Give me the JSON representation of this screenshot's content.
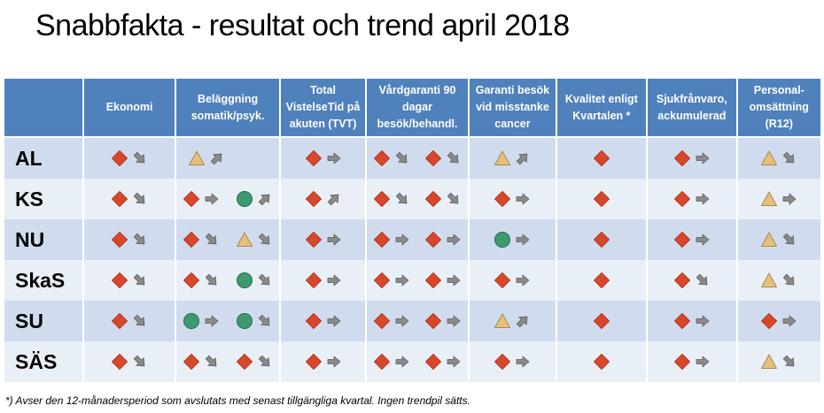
{
  "title": "Snabbfakta - resultat och trend april 2018",
  "columns": [
    "Ekonomi",
    "Beläggning somatik/psyk.",
    "Total VistelseTid på akuten (TVT)",
    "Vårdgaranti 90 dagar besök/behandl.",
    "Garanti besök vid misstanke cancer",
    "Kvalitet enligt Kvartalen *",
    "Sjukfrånvaro, ackumulerad",
    "Personal-omsättning (R12)"
  ],
  "colors": {
    "red": "#d9472b",
    "yellow": "#e6c07b",
    "green": "#3c9a6e",
    "header": "#4f81bd"
  },
  "rows": [
    {
      "label": "AL",
      "cells": [
        [
          [
            "red",
            "down-right"
          ]
        ],
        [
          [
            "yellow",
            "up-right"
          ],
          [
            "none",
            "none"
          ]
        ],
        [
          [
            "red",
            "right"
          ]
        ],
        [
          [
            "red",
            "down-right"
          ],
          [
            "red",
            "down-right"
          ]
        ],
        [
          [
            "yellow",
            "up-right"
          ]
        ],
        [
          [
            "red",
            "none"
          ]
        ],
        [
          [
            "red",
            "right"
          ]
        ],
        [
          [
            "yellow",
            "down-right"
          ]
        ]
      ]
    },
    {
      "label": "KS",
      "cells": [
        [
          [
            "red",
            "down-right"
          ]
        ],
        [
          [
            "red",
            "right"
          ],
          [
            "green",
            "up-right"
          ]
        ],
        [
          [
            "red",
            "up-right"
          ]
        ],
        [
          [
            "red",
            "down-right"
          ],
          [
            "red",
            "down-right"
          ]
        ],
        [
          [
            "red",
            "right"
          ]
        ],
        [
          [
            "red",
            "none"
          ]
        ],
        [
          [
            "red",
            "right"
          ]
        ],
        [
          [
            "yellow",
            "right"
          ]
        ]
      ]
    },
    {
      "label": "NU",
      "cells": [
        [
          [
            "red",
            "down-right"
          ]
        ],
        [
          [
            "red",
            "down-right"
          ],
          [
            "yellow",
            "down-right"
          ]
        ],
        [
          [
            "red",
            "right"
          ]
        ],
        [
          [
            "red",
            "right"
          ],
          [
            "red",
            "right"
          ]
        ],
        [
          [
            "green",
            "right"
          ]
        ],
        [
          [
            "red",
            "none"
          ]
        ],
        [
          [
            "red",
            "right"
          ]
        ],
        [
          [
            "yellow",
            "down-right"
          ]
        ]
      ]
    },
    {
      "label": "SkaS",
      "cells": [
        [
          [
            "red",
            "down-right"
          ]
        ],
        [
          [
            "red",
            "down-right"
          ],
          [
            "green",
            "down-right"
          ]
        ],
        [
          [
            "red",
            "right"
          ]
        ],
        [
          [
            "red",
            "right"
          ],
          [
            "red",
            "right"
          ]
        ],
        [
          [
            "red",
            "right"
          ]
        ],
        [
          [
            "red",
            "none"
          ]
        ],
        [
          [
            "red",
            "down-right"
          ]
        ],
        [
          [
            "yellow",
            "down-right"
          ]
        ]
      ]
    },
    {
      "label": "SU",
      "cells": [
        [
          [
            "red",
            "down-right"
          ]
        ],
        [
          [
            "green",
            "right"
          ],
          [
            "green",
            "down-right"
          ]
        ],
        [
          [
            "red",
            "right"
          ]
        ],
        [
          [
            "red",
            "right"
          ],
          [
            "red",
            "right"
          ]
        ],
        [
          [
            "yellow",
            "up-right"
          ]
        ],
        [
          [
            "red",
            "none"
          ]
        ],
        [
          [
            "red",
            "right"
          ]
        ],
        [
          [
            "red",
            "right"
          ]
        ]
      ]
    },
    {
      "label": "SÄS",
      "cells": [
        [
          [
            "red",
            "down-right"
          ]
        ],
        [
          [
            "red",
            "down-right"
          ],
          [
            "red",
            "down-right"
          ]
        ],
        [
          [
            "red",
            "right"
          ]
        ],
        [
          [
            "red",
            "right"
          ],
          [
            "red",
            "right"
          ]
        ],
        [
          [
            "red",
            "right"
          ]
        ],
        [
          [
            "red",
            "none"
          ]
        ],
        [
          [
            "red",
            "right"
          ]
        ],
        [
          [
            "yellow",
            "down-right"
          ]
        ]
      ]
    }
  ],
  "footnote": "*) Avser den 12-månadersperiod som avslutats med senast tillgängliga kvartal. Ingen trendpil sätts."
}
